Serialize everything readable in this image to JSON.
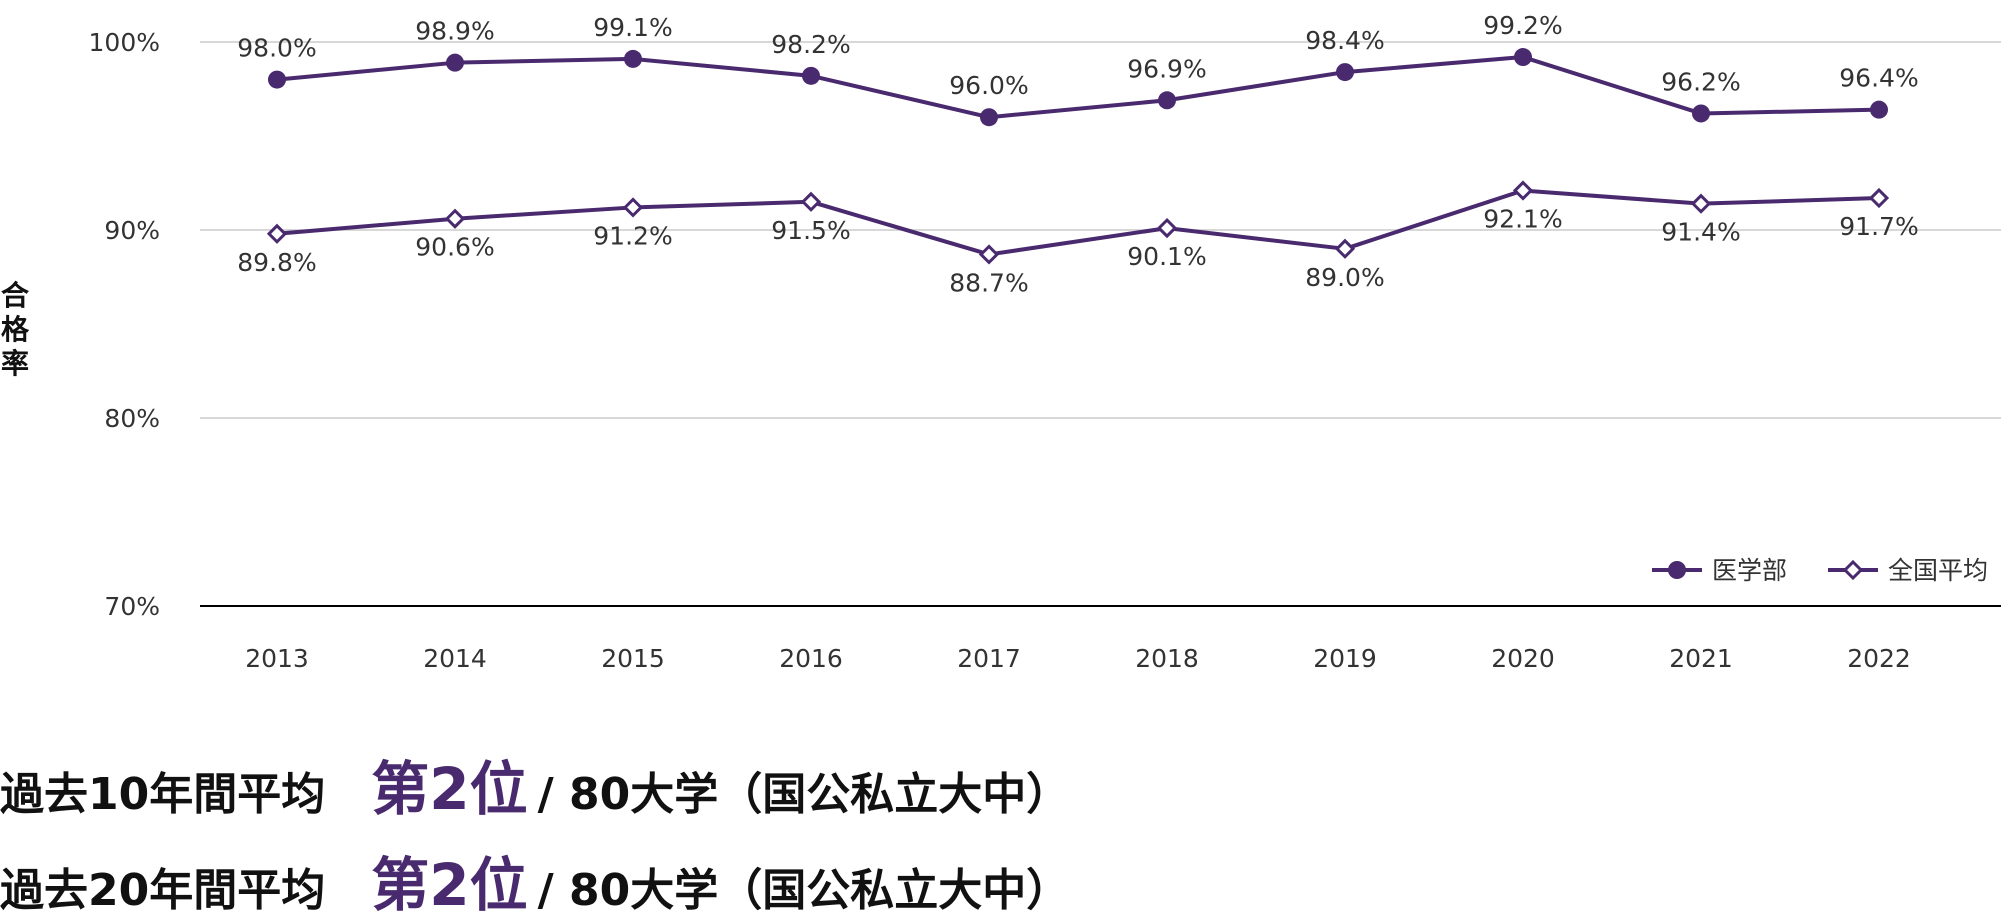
{
  "chart_data": {
    "type": "line",
    "title": "",
    "xlabel": "",
    "ylabel": "合格率",
    "ylim": [
      70,
      100
    ],
    "yticks": [
      "70%",
      "80%",
      "90%",
      "100%"
    ],
    "categories": [
      "2013",
      "2014",
      "2015",
      "2016",
      "2017",
      "2018",
      "2019",
      "2020",
      "2021",
      "2022"
    ],
    "series": [
      {
        "name": "医学部",
        "marker": "filled-circle",
        "values": [
          98.0,
          98.9,
          99.1,
          98.2,
          96.0,
          96.9,
          98.4,
          99.2,
          96.2,
          96.4
        ],
        "labels": [
          "98.0%",
          "98.9%",
          "99.1%",
          "98.2%",
          "96.0%",
          "96.9%",
          "98.4%",
          "99.2%",
          "96.2%",
          "96.4%"
        ]
      },
      {
        "name": "全国平均",
        "marker": "hollow-diamond",
        "values": [
          89.8,
          90.6,
          91.2,
          91.5,
          88.7,
          90.1,
          89.0,
          92.1,
          91.4,
          91.7
        ],
        "labels": [
          "89.8%",
          "90.6%",
          "91.2%",
          "91.5%",
          "88.7%",
          "90.1%",
          "89.0%",
          "92.1%",
          "91.4%",
          "91.7%"
        ]
      }
    ],
    "legend": "bottom-right",
    "grid": true,
    "colors": {
      "line": "#4a2a6e",
      "grid": "#cccccc",
      "axis": "#000000",
      "text": "#333333"
    }
  },
  "summary": [
    {
      "label": "過去10年間平均",
      "rank": "第2位",
      "rest": "/ 80大学（国公私立大中）"
    },
    {
      "label": "過去20年間平均",
      "rank": "第2位",
      "rest": "/ 80大学（国公私立大中）"
    }
  ]
}
